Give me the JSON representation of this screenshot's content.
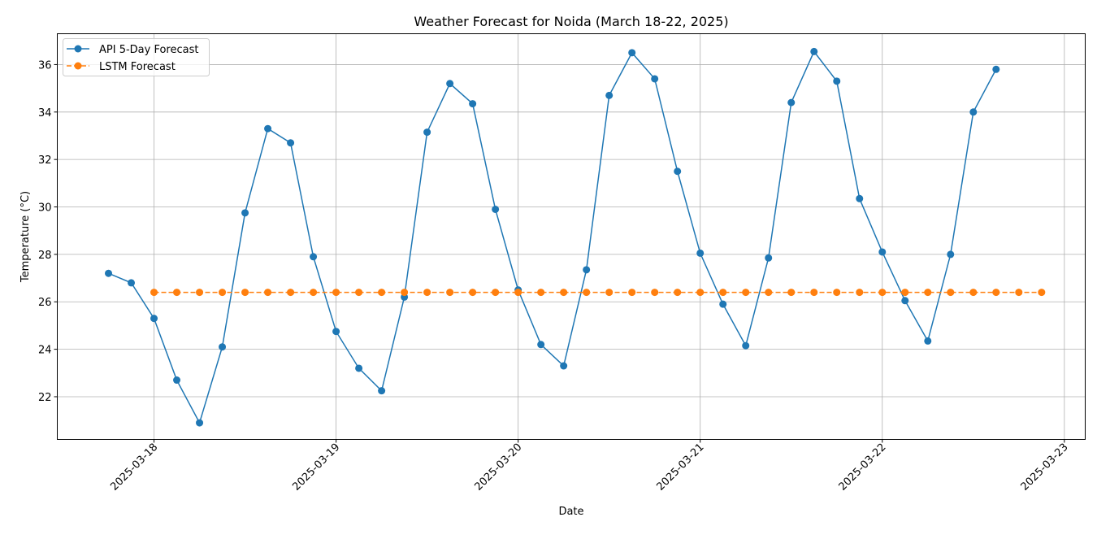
{
  "chart_data": {
    "type": "line",
    "title": "Weather Forecast for Noida (March 18-22, 2025)",
    "xlabel": "Date",
    "ylabel": "Temperature (°C)",
    "x_tick_labels": [
      "2025-03-18",
      "2025-03-19",
      "2025-03-20",
      "2025-03-21",
      "2025-03-22",
      "2025-03-23"
    ],
    "y_tick_labels": [
      "22",
      "24",
      "26",
      "28",
      "30",
      "32",
      "34",
      "36"
    ],
    "xlim": [
      "2025-03-17 11:15",
      "2025-03-23 02:45"
    ],
    "ylim": [
      20.2,
      37.3
    ],
    "grid": true,
    "legend_position": "upper-left",
    "series": [
      {
        "name": "API 5-Day Forecast",
        "color": "#1f77b4",
        "line_style": "solid",
        "marker": "circle",
        "points": [
          {
            "x": "2025-03-17 18:00",
            "y": 27.2
          },
          {
            "x": "2025-03-17 21:00",
            "y": 26.8
          },
          {
            "x": "2025-03-18 00:00",
            "y": 25.3
          },
          {
            "x": "2025-03-18 03:00",
            "y": 22.7
          },
          {
            "x": "2025-03-18 06:00",
            "y": 20.9
          },
          {
            "x": "2025-03-18 09:00",
            "y": 24.1
          },
          {
            "x": "2025-03-18 12:00",
            "y": 29.75
          },
          {
            "x": "2025-03-18 15:00",
            "y": 33.3
          },
          {
            "x": "2025-03-18 18:00",
            "y": 32.7
          },
          {
            "x": "2025-03-18 21:00",
            "y": 27.9
          },
          {
            "x": "2025-03-19 00:00",
            "y": 24.75
          },
          {
            "x": "2025-03-19 03:00",
            "y": 23.2
          },
          {
            "x": "2025-03-19 06:00",
            "y": 22.25
          },
          {
            "x": "2025-03-19 09:00",
            "y": 26.2
          },
          {
            "x": "2025-03-19 12:00",
            "y": 33.15
          },
          {
            "x": "2025-03-19 15:00",
            "y": 35.2
          },
          {
            "x": "2025-03-19 18:00",
            "y": 34.35
          },
          {
            "x": "2025-03-19 21:00",
            "y": 29.9
          },
          {
            "x": "2025-03-20 00:00",
            "y": 26.5
          },
          {
            "x": "2025-03-20 03:00",
            "y": 24.2
          },
          {
            "x": "2025-03-20 06:00",
            "y": 23.3
          },
          {
            "x": "2025-03-20 09:00",
            "y": 27.35
          },
          {
            "x": "2025-03-20 12:00",
            "y": 34.7
          },
          {
            "x": "2025-03-20 15:00",
            "y": 36.5
          },
          {
            "x": "2025-03-20 18:00",
            "y": 35.4
          },
          {
            "x": "2025-03-20 21:00",
            "y": 31.5
          },
          {
            "x": "2025-03-21 00:00",
            "y": 28.05
          },
          {
            "x": "2025-03-21 03:00",
            "y": 25.9
          },
          {
            "x": "2025-03-21 06:00",
            "y": 24.15
          },
          {
            "x": "2025-03-21 09:00",
            "y": 27.85
          },
          {
            "x": "2025-03-21 12:00",
            "y": 34.4
          },
          {
            "x": "2025-03-21 15:00",
            "y": 36.55
          },
          {
            "x": "2025-03-21 18:00",
            "y": 35.3
          },
          {
            "x": "2025-03-21 21:00",
            "y": 30.35
          },
          {
            "x": "2025-03-22 00:00",
            "y": 28.1
          },
          {
            "x": "2025-03-22 03:00",
            "y": 26.05
          },
          {
            "x": "2025-03-22 06:00",
            "y": 24.35
          },
          {
            "x": "2025-03-22 09:00",
            "y": 28.0
          },
          {
            "x": "2025-03-22 12:00",
            "y": 34.0
          },
          {
            "x": "2025-03-22 15:00",
            "y": 35.8
          }
        ]
      },
      {
        "name": "LSTM Forecast",
        "color": "#ff7f0e",
        "line_style": "dashed",
        "marker": "circle",
        "points": [
          {
            "x": "2025-03-18 00:00",
            "y": 26.4
          },
          {
            "x": "2025-03-18 03:00",
            "y": 26.4
          },
          {
            "x": "2025-03-18 06:00",
            "y": 26.4
          },
          {
            "x": "2025-03-18 09:00",
            "y": 26.4
          },
          {
            "x": "2025-03-18 12:00",
            "y": 26.4
          },
          {
            "x": "2025-03-18 15:00",
            "y": 26.4
          },
          {
            "x": "2025-03-18 18:00",
            "y": 26.4
          },
          {
            "x": "2025-03-18 21:00",
            "y": 26.4
          },
          {
            "x": "2025-03-19 00:00",
            "y": 26.4
          },
          {
            "x": "2025-03-19 03:00",
            "y": 26.4
          },
          {
            "x": "2025-03-19 06:00",
            "y": 26.4
          },
          {
            "x": "2025-03-19 09:00",
            "y": 26.4
          },
          {
            "x": "2025-03-19 12:00",
            "y": 26.4
          },
          {
            "x": "2025-03-19 15:00",
            "y": 26.4
          },
          {
            "x": "2025-03-19 18:00",
            "y": 26.4
          },
          {
            "x": "2025-03-19 21:00",
            "y": 26.4
          },
          {
            "x": "2025-03-20 00:00",
            "y": 26.4
          },
          {
            "x": "2025-03-20 03:00",
            "y": 26.4
          },
          {
            "x": "2025-03-20 06:00",
            "y": 26.4
          },
          {
            "x": "2025-03-20 09:00",
            "y": 26.4
          },
          {
            "x": "2025-03-20 12:00",
            "y": 26.4
          },
          {
            "x": "2025-03-20 15:00",
            "y": 26.4
          },
          {
            "x": "2025-03-20 18:00",
            "y": 26.4
          },
          {
            "x": "2025-03-20 21:00",
            "y": 26.4
          },
          {
            "x": "2025-03-21 00:00",
            "y": 26.4
          },
          {
            "x": "2025-03-21 03:00",
            "y": 26.4
          },
          {
            "x": "2025-03-21 06:00",
            "y": 26.4
          },
          {
            "x": "2025-03-21 09:00",
            "y": 26.4
          },
          {
            "x": "2025-03-21 12:00",
            "y": 26.4
          },
          {
            "x": "2025-03-21 15:00",
            "y": 26.4
          },
          {
            "x": "2025-03-21 18:00",
            "y": 26.4
          },
          {
            "x": "2025-03-21 21:00",
            "y": 26.4
          },
          {
            "x": "2025-03-22 00:00",
            "y": 26.4
          },
          {
            "x": "2025-03-22 03:00",
            "y": 26.4
          },
          {
            "x": "2025-03-22 06:00",
            "y": 26.4
          },
          {
            "x": "2025-03-22 09:00",
            "y": 26.4
          },
          {
            "x": "2025-03-22 12:00",
            "y": 26.4
          },
          {
            "x": "2025-03-22 15:00",
            "y": 26.4
          },
          {
            "x": "2025-03-22 18:00",
            "y": 26.4
          },
          {
            "x": "2025-03-22 21:00",
            "y": 26.4
          }
        ]
      }
    ]
  }
}
